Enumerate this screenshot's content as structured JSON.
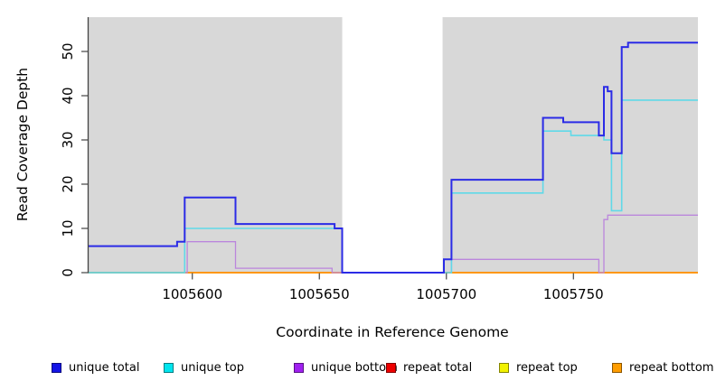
{
  "chart_data": {
    "type": "line",
    "subtype": "step-coverage",
    "title": "",
    "xlabel": "Coordinate in Reference Genome",
    "ylabel": "Read Coverage Depth",
    "x_range": [
      1005559,
      1005799
    ],
    "y_range": [
      0,
      57.8
    ],
    "x_ticks": [
      1005600,
      1005650,
      1005700,
      1005750
    ],
    "y_ticks": [
      0,
      10,
      20,
      30,
      40,
      50
    ],
    "grid": false,
    "legend_position": "bottom",
    "background_shading": {
      "color": "#D8D8D8",
      "regions": [
        [
          1005559,
          1005659
        ],
        [
          1005698.5,
          1005799
        ]
      ],
      "uncovered_gap": [
        1005659,
        1005698.5
      ]
    },
    "series": [
      {
        "name": "unique total",
        "color": "#1414E6",
        "line_color": "#2B2BE6",
        "line_width": 2,
        "steps": [
          [
            1005559,
            6
          ],
          [
            1005594,
            7
          ],
          [
            1005597,
            17
          ],
          [
            1005617,
            11
          ],
          [
            1005656,
            10
          ],
          [
            1005659,
            0
          ],
          [
            1005699,
            3
          ],
          [
            1005702,
            21
          ],
          [
            1005738,
            35
          ],
          [
            1005746,
            34
          ],
          [
            1005760,
            31
          ],
          [
            1005762,
            42
          ],
          [
            1005763.5,
            41
          ],
          [
            1005765,
            27
          ],
          [
            1005769,
            51
          ],
          [
            1005771.5,
            52
          ],
          [
            1005799,
            52
          ]
        ]
      },
      {
        "name": "unique top",
        "color": "#00E5EE",
        "line_color": "#5FD9E8",
        "line_width": 1.6,
        "steps": [
          [
            1005559,
            0
          ],
          [
            1005597,
            10
          ],
          [
            1005659,
            0
          ],
          [
            1005702,
            18
          ],
          [
            1005738,
            32
          ],
          [
            1005749,
            31
          ],
          [
            1005762,
            30
          ],
          [
            1005765,
            14
          ],
          [
            1005769,
            39
          ],
          [
            1005799,
            39
          ]
        ]
      },
      {
        "name": "unique bottom",
        "color": "#A020F0",
        "line_color": "#BB86DC",
        "line_width": 1.3,
        "steps": [
          [
            1005559,
            0
          ],
          [
            1005598,
            7
          ],
          [
            1005617,
            1
          ],
          [
            1005655,
            0
          ],
          [
            1005702,
            3
          ],
          [
            1005760,
            0
          ],
          [
            1005762,
            12
          ],
          [
            1005763.5,
            13
          ],
          [
            1005799,
            13
          ]
        ]
      },
      {
        "name": "repeat total",
        "color": "#EE0000",
        "line_color": "#EE2222",
        "line_width": 1.2,
        "steps": [
          [
            1005559,
            0
          ],
          [
            1005799,
            0
          ]
        ]
      },
      {
        "name": "repeat top",
        "color": "#F2F200",
        "line_color": "#F2F200",
        "line_width": 1.2,
        "steps": [
          [
            1005559,
            0
          ],
          [
            1005799,
            0
          ]
        ]
      },
      {
        "name": "repeat bottom",
        "color": "#FF9D00",
        "line_color": "#FF9100",
        "line_width": 1.8,
        "steps": [
          [
            1005559,
            0
          ],
          [
            1005799,
            0
          ]
        ]
      }
    ],
    "overlap_segment": {
      "color": "#7CC87C",
      "value": 0,
      "x_from": 1005559,
      "x_to": 1005597,
      "line_width": 1.5
    }
  }
}
